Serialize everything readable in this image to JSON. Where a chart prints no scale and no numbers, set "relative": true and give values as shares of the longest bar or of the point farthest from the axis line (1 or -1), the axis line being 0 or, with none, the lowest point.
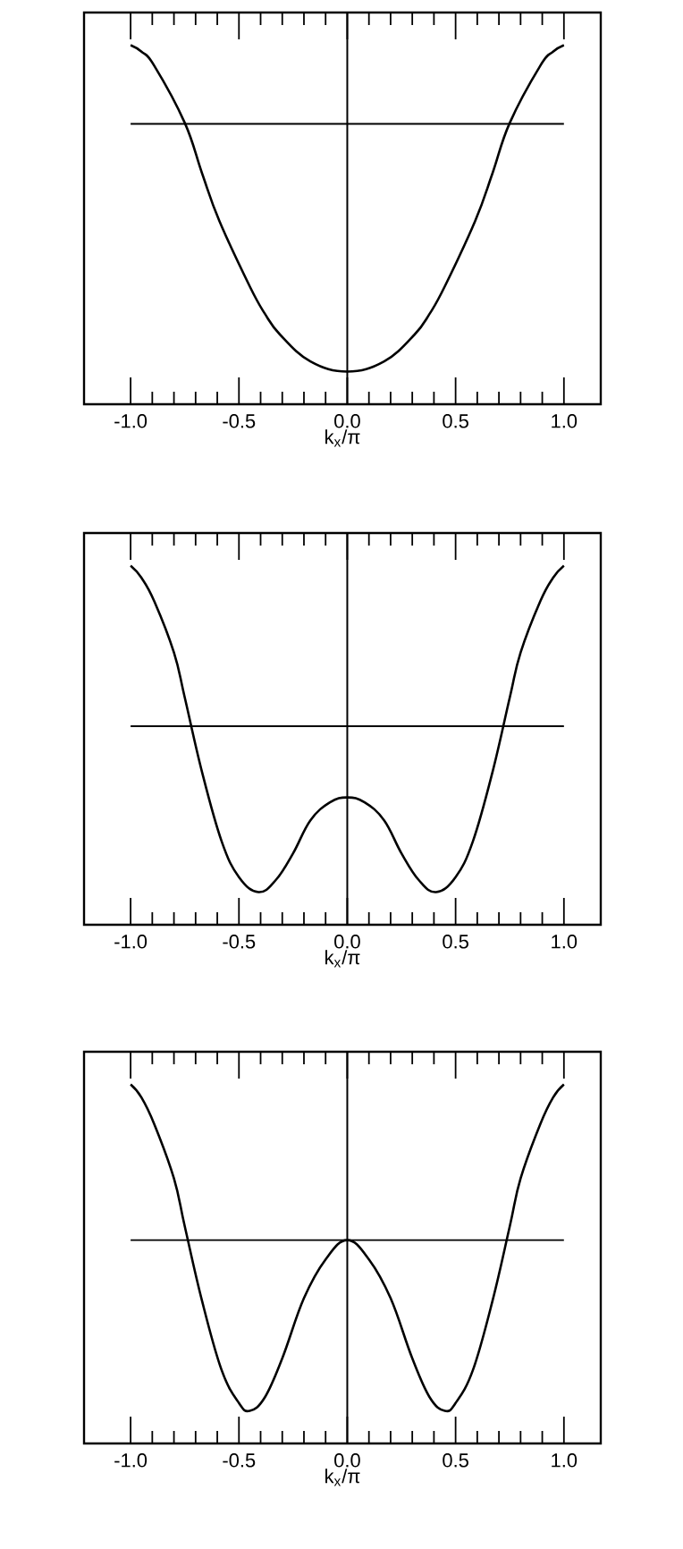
{
  "chart_data": [
    {
      "type": "line",
      "xlabel": "k$_{x}$/π",
      "relative": true,
      "tick_labels": "x",
      "xlim": [
        -1.215,
        1.17
      ],
      "xticks": [
        {
          "value": -1,
          "label": "-1.0"
        },
        {
          "value": -0.5,
          "label": "-0.5"
        },
        {
          "value": 0,
          "label": "0.0"
        },
        {
          "value": 0.5,
          "label": "0.5"
        },
        {
          "value": 1,
          "label": "1.0"
        }
      ],
      "x": [
        -1,
        -0.95,
        -0.89,
        -0.75,
        -0.67,
        -0.59,
        -0.45,
        -0.38,
        -0.31,
        -0.17,
        0,
        0.17,
        0.31,
        0.38,
        0.45,
        0.59,
        0.67,
        0.75,
        0.89,
        0.95,
        1
      ],
      "series": [
        {
          "color": "#000000",
          "values": [
            1,
            0.98,
            0.936,
            0.762,
            0.607,
            0.461,
            0.261,
            0.177,
            0.113,
            0.031,
            0,
            0.031,
            0.113,
            0.177,
            0.261,
            0.461,
            0.607,
            0.762,
            0.936,
            0.98,
            1
          ]
        }
      ],
      "ref_lines": [
        {
          "axis": "y",
          "value": 0.759,
          "color": "#000000"
        },
        {
          "axis": "x",
          "value": 0,
          "color": "#000000"
        }
      ]
    },
    {
      "type": "line",
      "xlabel": "k$_{x}$/π",
      "relative": true,
      "tick_labels": "x",
      "xlim": [
        -1.215,
        1.17
      ],
      "xticks": [
        {
          "value": -1,
          "label": "-1.0"
        },
        {
          "value": -0.5,
          "label": "-0.5"
        },
        {
          "value": 0,
          "label": "0.0"
        },
        {
          "value": 0.5,
          "label": "0.5"
        },
        {
          "value": 1,
          "label": "1.0"
        }
      ],
      "x": [
        -1,
        -0.95,
        -0.89,
        -0.8,
        -0.75,
        -0.67,
        -0.58,
        -0.5,
        -0.41,
        -0.33,
        -0.25,
        -0.17,
        -0.08,
        0,
        0.08,
        0.17,
        0.25,
        0.33,
        0.41,
        0.5,
        0.58,
        0.67,
        0.75,
        0.8,
        0.89,
        0.95,
        1
      ],
      "series": [
        {
          "color": "#000000",
          "values": [
            1,
            0.963,
            0.89,
            0.734,
            0.596,
            0.367,
            0.156,
            0.046,
            0,
            0.037,
            0.119,
            0.22,
            0.275,
            0.29,
            0.275,
            0.22,
            0.119,
            0.037,
            0,
            0.046,
            0.156,
            0.367,
            0.596,
            0.734,
            0.89,
            0.963,
            1
          ]
        }
      ],
      "ref_lines": [
        {
          "axis": "y",
          "value": 0.508,
          "color": "#000000"
        },
        {
          "axis": "x",
          "value": 0,
          "color": "#000000"
        }
      ]
    },
    {
      "type": "line",
      "xlabel": "k$_{x}$/π",
      "relative": true,
      "tick_labels": "x",
      "xlim": [
        -1.215,
        1.17
      ],
      "xticks": [
        {
          "value": -1,
          "label": "-1.0"
        },
        {
          "value": -0.5,
          "label": "-0.5"
        },
        {
          "value": 0,
          "label": "0.0"
        },
        {
          "value": 0.5,
          "label": "0.5"
        },
        {
          "value": 1,
          "label": "1.0"
        }
      ],
      "x": [
        -1,
        -0.95,
        -0.89,
        -0.8,
        -0.75,
        -0.67,
        -0.58,
        -0.5,
        -0.45,
        -0.38,
        -0.3,
        -0.2,
        -0.1,
        0,
        0.1,
        0.2,
        0.3,
        0.38,
        0.45,
        0.5,
        0.58,
        0.67,
        0.75,
        0.8,
        0.89,
        0.95,
        1
      ],
      "series": [
        {
          "color": "#000000",
          "values": [
            1,
            0.96,
            0.877,
            0.712,
            0.565,
            0.336,
            0.125,
            0.024,
            0,
            0.042,
            0.161,
            0.345,
            0.464,
            0.523,
            0.464,
            0.345,
            0.161,
            0.042,
            0,
            0.024,
            0.125,
            0.336,
            0.565,
            0.712,
            0.877,
            0.96,
            1
          ]
        }
      ],
      "ref_lines": [
        {
          "axis": "y",
          "value": 0.523,
          "color": "#000000"
        },
        {
          "axis": "x",
          "value": 0,
          "color": "#000000"
        }
      ]
    }
  ]
}
